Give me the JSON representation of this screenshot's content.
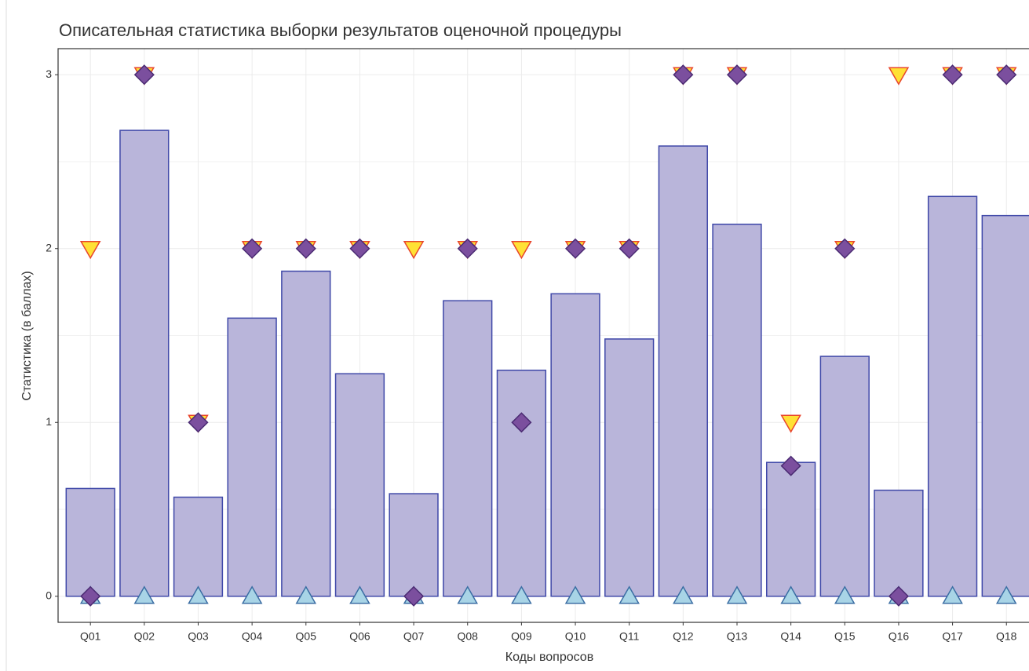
{
  "chart_data": {
    "type": "bar",
    "title": "Описательная статистика выборки результатов оценочной процедуры",
    "x_label": "Коды вопросов",
    "y_label": "Статистика (в баллах)",
    "categories": [
      "Q01",
      "Q02",
      "Q03",
      "Q04",
      "Q05",
      "Q06",
      "Q07",
      "Q08",
      "Q09",
      "Q10",
      "Q11",
      "Q12",
      "Q13",
      "Q14",
      "Q15",
      "Q16",
      "Q17",
      "Q18"
    ],
    "values": [
      0.62,
      2.68,
      0.57,
      1.6,
      1.87,
      1.28,
      0.59,
      1.7,
      1.3,
      1.74,
      1.48,
      2.59,
      2.14,
      0.77,
      1.38,
      0.61,
      2.3,
      2.19
    ],
    "color": "#b9b5da",
    "edge_color": "#3f48a8",
    "series": [
      {
        "marker": "triangle-up",
        "color": "#a8d4e6",
        "edge_color": "#3b6ea3",
        "values": [
          0,
          0,
          0,
          0,
          0,
          0,
          0,
          0,
          0,
          0,
          0,
          0,
          0,
          0,
          0,
          0,
          0,
          0
        ]
      },
      {
        "marker": "triangle-down",
        "color": "#ffe135",
        "edge_color": "#e8452c",
        "values": [
          2,
          3,
          1,
          2,
          2,
          2,
          2,
          2,
          2,
          2,
          2,
          3,
          3,
          1,
          2,
          3,
          3,
          3
        ]
      },
      {
        "marker": "diamond",
        "color": "#7b4f9e",
        "edge_color": "#4a2a72",
        "values": [
          0,
          3,
          1,
          2,
          2,
          2,
          0,
          2,
          1,
          2,
          2,
          3,
          3,
          0.75,
          2,
          0,
          3,
          3
        ]
      }
    ],
    "ylim": [
      -0.15,
      3.15
    ],
    "yticks": [
      0,
      1,
      2,
      3
    ],
    "grid": true
  }
}
